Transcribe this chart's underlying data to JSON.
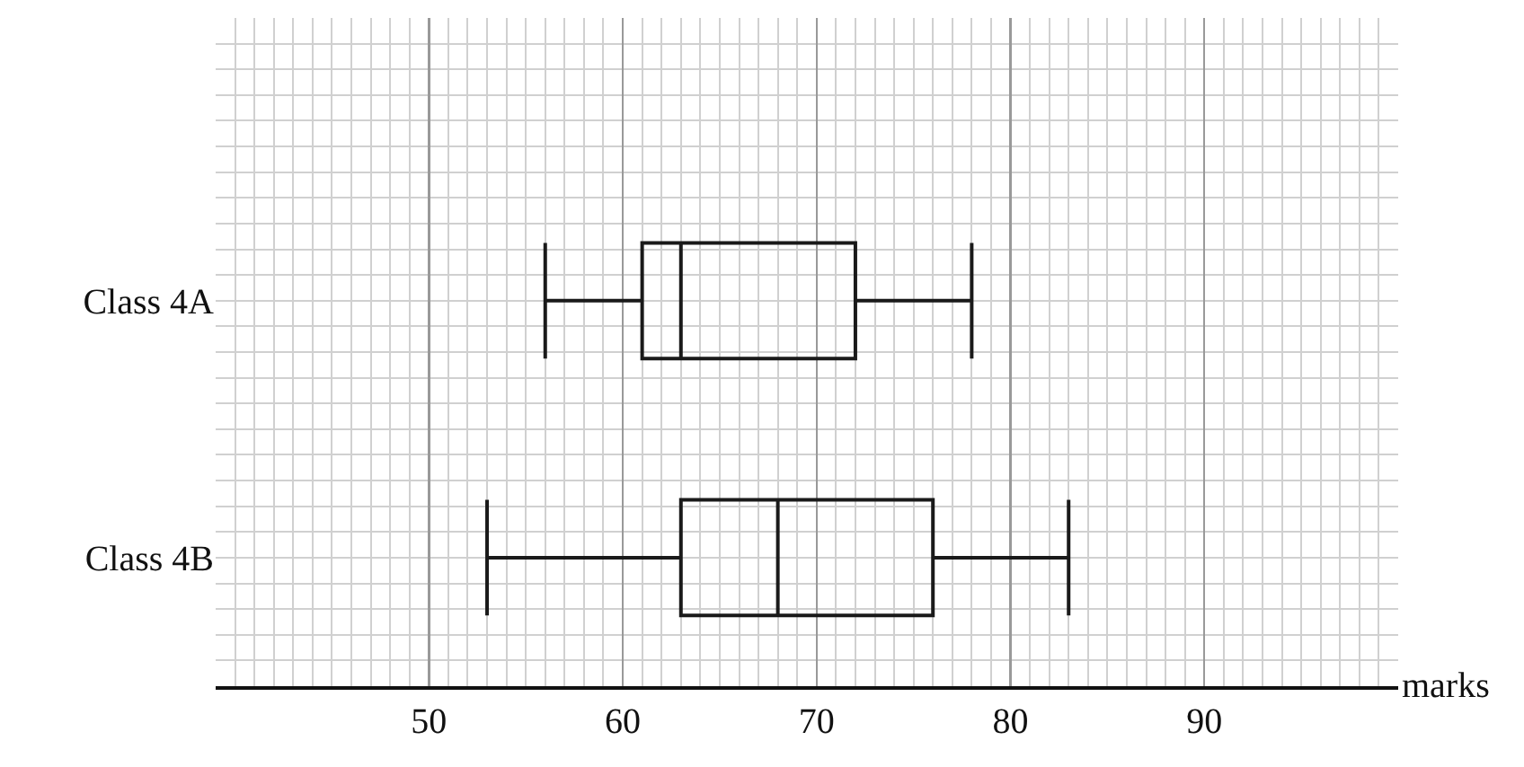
{
  "chart_data": {
    "type": "box",
    "orientation": "horizontal",
    "xlabel": "marks",
    "categories": [
      "Class 4A",
      "Class 4B"
    ],
    "boxes": [
      {
        "low": 56,
        "q1": 61,
        "median": 63,
        "q3": 72,
        "high": 78
      },
      {
        "low": 53,
        "q1": 63,
        "median": 68,
        "q3": 76,
        "high": 83
      }
    ],
    "color": "#1a1a1a",
    "xlim": [
      39,
      100
    ],
    "xticks": [
      50,
      60,
      70,
      80,
      90
    ],
    "grid": true
  }
}
